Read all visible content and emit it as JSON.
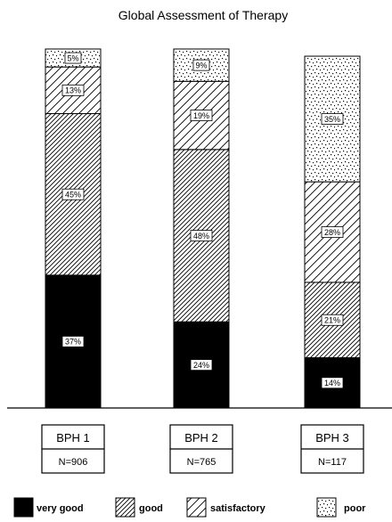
{
  "chart_data": {
    "type": "bar",
    "stacked": true,
    "title": "Global Assessment of Therapy",
    "categories": [
      "BPH 1",
      "BPH 2",
      "BPH 3"
    ],
    "n_labels": [
      "N=906",
      "N=765",
      "N=117"
    ],
    "series": [
      {
        "name": "very good",
        "pattern": "solid-black",
        "values": [
          37,
          24,
          14
        ],
        "labels": [
          "37%",
          "24%",
          "14%"
        ]
      },
      {
        "name": "good",
        "pattern": "dense-hatch",
        "values": [
          45,
          48,
          21
        ],
        "labels": [
          "45%",
          "48%",
          "21%"
        ]
      },
      {
        "name": "satisfactory",
        "pattern": "sparse-hatch",
        "values": [
          13,
          19,
          28
        ],
        "labels": [
          "13%",
          "19%",
          "28%"
        ]
      },
      {
        "name": "poor",
        "pattern": "dots",
        "values": [
          5,
          9,
          35
        ],
        "labels": [
          "5%",
          "9%",
          "35%"
        ]
      }
    ],
    "ylim": [
      0,
      100
    ],
    "grid": false,
    "legend_position": "bottom"
  },
  "colors": {
    "ink": "#000000",
    "paper": "#ffffff"
  }
}
